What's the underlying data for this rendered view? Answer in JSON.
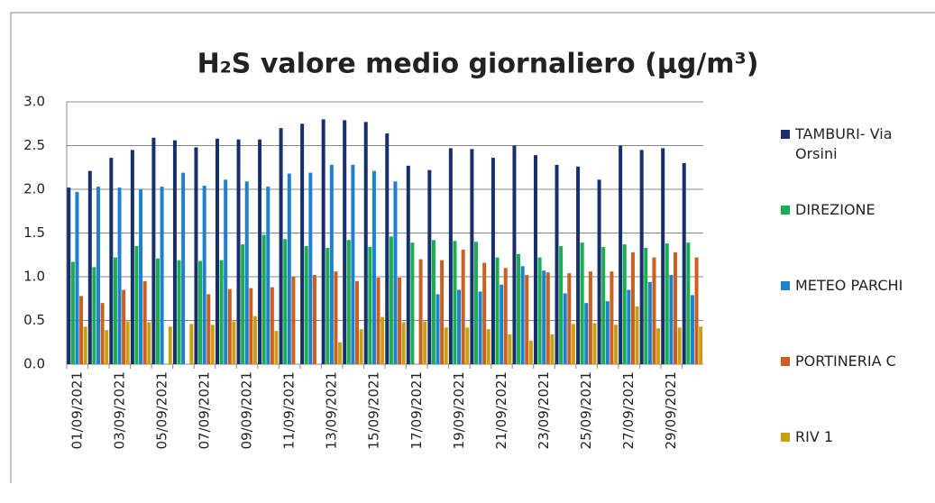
{
  "chart_data": {
    "type": "bar",
    "title": "H₂S valore medio giornaliero (µg/m³)",
    "categories": [
      "01/09/2021",
      null,
      "03/09/2021",
      null,
      "05/09/2021",
      null,
      "07/09/2021",
      null,
      "09/09/2021",
      null,
      "11/09/2021",
      null,
      "13/09/2021",
      null,
      "15/09/2021",
      null,
      "17/09/2021",
      null,
      "19/09/2021",
      null,
      "21/09/2021",
      null,
      "23/09/2021",
      null,
      "25/09/2021",
      null,
      "27/09/2021",
      null,
      "29/09/2021",
      null
    ],
    "series": [
      {
        "name": "TAMBURI- Via Orsini",
        "color": "#172f6c",
        "values": [
          2.02,
          2.21,
          2.36,
          2.45,
          2.59,
          2.56,
          2.48,
          2.58,
          2.57,
          2.57,
          2.7,
          2.75,
          2.8,
          2.79,
          2.77,
          2.64,
          2.27,
          2.22,
          2.47,
          2.46,
          2.36,
          2.5,
          2.39,
          2.28,
          2.26,
          2.11,
          2.5,
          2.45,
          2.47,
          2.3
        ]
      },
      {
        "name": "DIREZIONE",
        "color": "#1aae50",
        "values": [
          1.17,
          1.11,
          1.22,
          1.35,
          1.21,
          1.19,
          1.18,
          1.19,
          1.37,
          1.48,
          1.43,
          1.35,
          1.33,
          1.42,
          1.34,
          1.46,
          1.39,
          1.42,
          1.41,
          1.4,
          1.22,
          1.26,
          1.22,
          1.35,
          1.39,
          1.34,
          1.37,
          1.33,
          1.38,
          1.39
        ]
      },
      {
        "name": "METEO PARCHI",
        "color": "#1f7fd0",
        "values": [
          1.97,
          2.03,
          2.02,
          2.0,
          2.03,
          2.19,
          2.04,
          2.11,
          2.09,
          2.03,
          2.18,
          2.19,
          2.28,
          2.28,
          2.21,
          2.09,
          null,
          0.8,
          0.85,
          0.83,
          0.91,
          1.12,
          1.07,
          0.81,
          0.7,
          0.72,
          0.85,
          0.94,
          1.02,
          0.79
        ]
      },
      {
        "name": "PORTINERIA C",
        "color": "#c9601f",
        "values": [
          0.78,
          0.7,
          0.85,
          0.95,
          null,
          null,
          0.8,
          0.86,
          0.87,
          0.88,
          1.0,
          1.02,
          1.06,
          0.95,
          0.99,
          0.99,
          1.2,
          1.19,
          1.31,
          1.16,
          1.1,
          1.02,
          1.05,
          1.04,
          1.06,
          1.06,
          1.28,
          1.22,
          1.28,
          1.22
        ]
      },
      {
        "name": "RIV 1",
        "color": "#c9a012",
        "values": [
          0.43,
          0.39,
          0.49,
          0.48,
          0.43,
          0.46,
          0.45,
          0.49,
          0.55,
          0.38,
          null,
          null,
          0.25,
          0.4,
          0.54,
          0.48,
          0.49,
          0.42,
          0.42,
          0.4,
          0.34,
          0.27,
          0.34,
          0.46,
          0.47,
          0.45,
          0.66,
          0.41,
          0.42,
          0.43
        ]
      }
    ],
    "ylim": [
      0,
      3
    ],
    "yticks": [
      {
        "value": 0,
        "label": "0.0"
      },
      0.5,
      {
        "value": 1,
        "label": "1.0"
      },
      1.5,
      {
        "value": 2,
        "label": "2.0"
      },
      2.5,
      {
        "value": 3,
        "label": "3.0"
      }
    ],
    "grid": true
  }
}
